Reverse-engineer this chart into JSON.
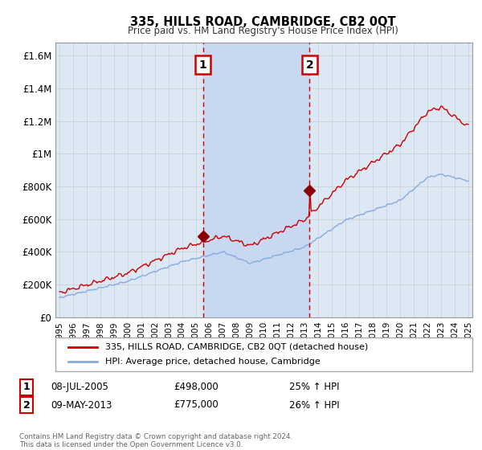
{
  "title": "335, HILLS ROAD, CAMBRIDGE, CB2 0QT",
  "subtitle": "Price paid vs. HM Land Registry's House Price Index (HPI)",
  "ylabel_ticks": [
    "£0",
    "£200K",
    "£400K",
    "£600K",
    "£800K",
    "£1M",
    "£1.2M",
    "£1.4M",
    "£1.6M"
  ],
  "ytick_values": [
    0,
    200000,
    400000,
    600000,
    800000,
    1000000,
    1200000,
    1400000,
    1600000
  ],
  "ylim": [
    0,
    1680000
  ],
  "xlim_start": 1994.7,
  "xlim_end": 2025.3,
  "x_ticks": [
    1995,
    1996,
    1997,
    1998,
    1999,
    2000,
    2001,
    2002,
    2003,
    2004,
    2005,
    2006,
    2007,
    2008,
    2009,
    2010,
    2011,
    2012,
    2013,
    2014,
    2015,
    2016,
    2017,
    2018,
    2019,
    2020,
    2021,
    2022,
    2023,
    2024,
    2025
  ],
  "transaction1_x": 2005.52,
  "transaction1_y": 498000,
  "transaction2_x": 2013.36,
  "transaction2_y": 775000,
  "line1_color": "#cc0000",
  "line2_color": "#88aadd",
  "vline_color": "#cc0000",
  "dot_color": "#8b0000",
  "box_color": "#cc0000",
  "grid_color": "#cccccc",
  "plot_bg_color": "#dde8f5",
  "highlight_color": "#c8d8f0",
  "legend1_label": "335, HILLS ROAD, CAMBRIDGE, CB2 0QT (detached house)",
  "legend2_label": "HPI: Average price, detached house, Cambridge",
  "transaction1_label": "1",
  "transaction2_label": "2",
  "transaction1_date": "08-JUL-2005",
  "transaction1_price": "£498,000",
  "transaction1_hpi": "25% ↑ HPI",
  "transaction2_date": "09-MAY-2013",
  "transaction2_price": "£775,000",
  "transaction2_hpi": "26% ↑ HPI",
  "footer": "Contains HM Land Registry data © Crown copyright and database right 2024.\nThis data is licensed under the Open Government Licence v3.0."
}
